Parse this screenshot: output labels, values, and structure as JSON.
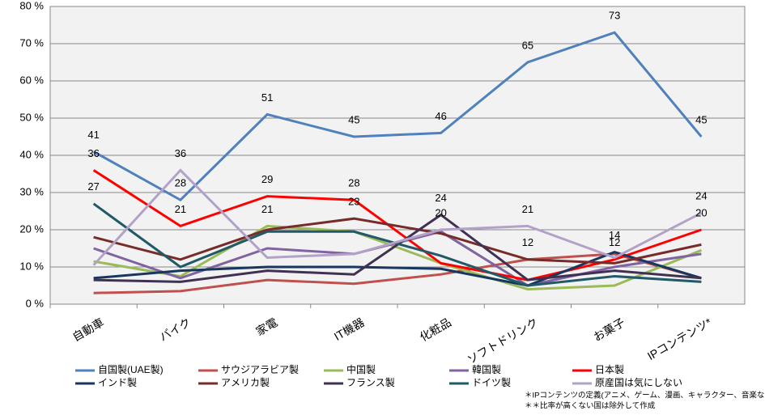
{
  "chart_data": {
    "type": "line",
    "categories": [
      "自動車",
      "バイク",
      "家電",
      "IT機器",
      "化粧品",
      "ソフトドリンク",
      "お菓子",
      "IPコンテンツ*"
    ],
    "ylim": [
      0,
      80
    ],
    "yticks": [
      {
        "value": 0,
        "label": "0 %"
      },
      {
        "value": 10,
        "label": "10 %"
      },
      {
        "value": 20,
        "label": "20 %"
      },
      {
        "value": 30,
        "label": "30 %"
      },
      {
        "value": 40,
        "label": "40 %"
      },
      {
        "value": 50,
        "label": "50 %"
      },
      {
        "value": 60,
        "label": "60 %"
      },
      {
        "value": 70,
        "label": "70 %"
      },
      {
        "value": 80,
        "label": "80 %"
      }
    ],
    "grid": true,
    "series": [
      {
        "name": "自国製(UAE製)",
        "color": "#4f81bd",
        "values": [
          41,
          28,
          51,
          45,
          46,
          65,
          73,
          45
        ],
        "value_labels": [
          "41",
          "28",
          "51",
          "45",
          "46",
          "65",
          "73",
          "45"
        ]
      },
      {
        "name": "サウジアラビア製",
        "color": "#c0504d",
        "values": [
          3,
          3.5,
          6.5,
          5.5,
          8,
          12,
          13.5,
          7
        ]
      },
      {
        "name": "中国製",
        "color": "#9bbb59",
        "values": [
          11.5,
          7.5,
          21,
          19.5,
          11,
          4,
          5,
          14.5
        ],
        "value_labels": [
          null,
          null,
          "21",
          null,
          null,
          null,
          null,
          null
        ]
      },
      {
        "name": "韓国製",
        "color": "#8064a2",
        "values": [
          15,
          7,
          15,
          13.5,
          19.5,
          5,
          10,
          13.5
        ]
      },
      {
        "name": "日本製",
        "color": "#ff0000",
        "values": [
          36,
          21,
          29,
          28,
          11,
          6.5,
          12,
          20
        ],
        "value_labels": [
          "36",
          "21",
          "29",
          "28",
          null,
          null,
          "12",
          "20"
        ]
      },
      {
        "name": "インド製",
        "color": "#17375e",
        "values": [
          7,
          9,
          10,
          10,
          9.5,
          5,
          14,
          7
        ],
        "value_labels": [
          null,
          null,
          null,
          null,
          null,
          null,
          "14",
          null
        ]
      },
      {
        "name": "アメリカ製",
        "color": "#772c2a",
        "values": [
          18,
          12,
          20,
          23,
          19,
          12,
          11,
          16
        ],
        "value_labels": [
          null,
          null,
          null,
          "23",
          null,
          "12",
          null,
          null
        ]
      },
      {
        "name": "フランス製",
        "color": "#403152",
        "values": [
          6.5,
          6,
          9,
          8,
          24,
          6.5,
          9,
          7
        ],
        "value_labels": [
          null,
          null,
          null,
          null,
          "24",
          null,
          null,
          null
        ]
      },
      {
        "name": "ドイツ製",
        "color": "#215967",
        "values": [
          27,
          10,
          19.5,
          19.5,
          13,
          5,
          7.5,
          6
        ],
        "value_labels": [
          "27",
          null,
          null,
          null,
          null,
          null,
          null,
          null
        ]
      },
      {
        "name": "原産国は気にしない",
        "color": "#b3a2c7",
        "values": [
          10.5,
          36,
          12.5,
          13.5,
          20,
          21,
          12.5,
          24.5
        ],
        "value_labels": [
          null,
          "36",
          null,
          null,
          "20",
          "21",
          null,
          "24"
        ]
      }
    ],
    "notes": [
      "＊IPコンテンツの定義(アニメ、ゲーム、漫画、キャラクター、音楽など)",
      "＊＊比率が高くない国は除外して作成"
    ]
  }
}
